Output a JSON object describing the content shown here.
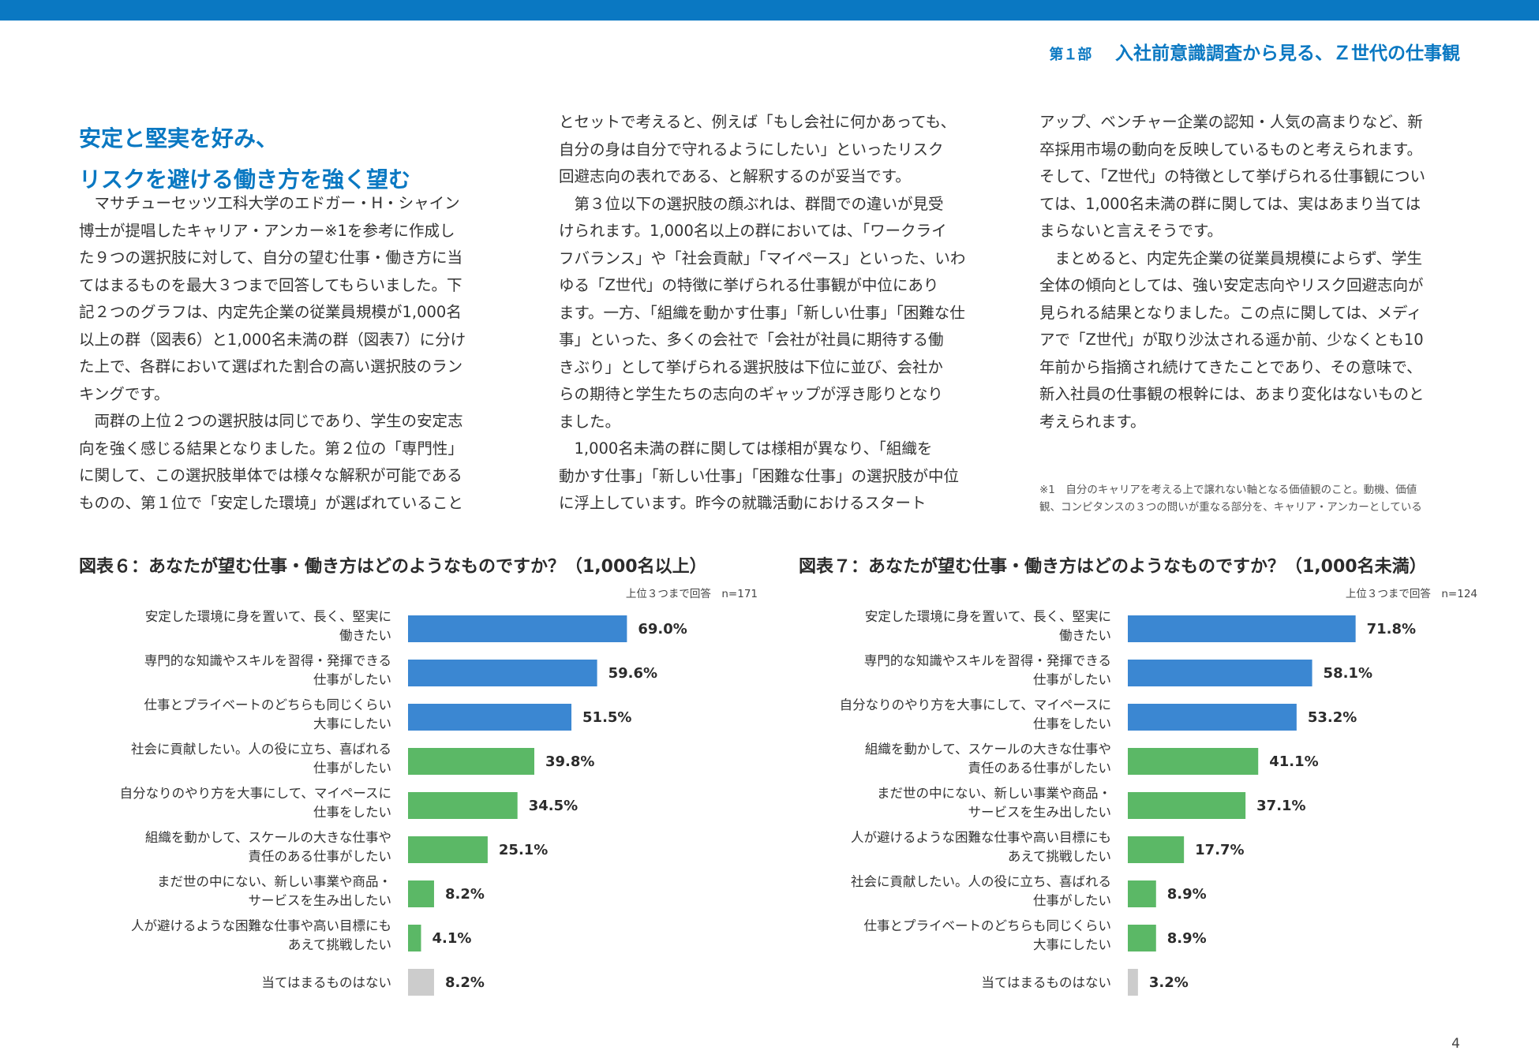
{
  "header": {
    "part": "第１部",
    "title": "入社前意識調査から見る、Ｚ世代の仕事観"
  },
  "heading": {
    "line1": "安定と堅実を好み、",
    "line2": "リスクを避ける働き方を強く望む"
  },
  "columns": {
    "col1": [
      "　マサチューセッツ工科大学のエドガー・H・シャイン",
      "博士が提唱したキャリア・アンカー※1を参考に作成し",
      "た９つの選択肢に対して、自分の望む仕事・働き方に当",
      "てはまるものを最大３つまで回答してもらいました。下",
      "記２つのグラフは、内定先企業の従業員規模が1,000名",
      "以上の群（図表6）と1,000名未満の群（図表7）に分け",
      "た上で、各群において選ばれた割合の高い選択肢のラン",
      "キングです。",
      "　両群の上位２つの選択肢は同じであり、学生の安定志",
      "向を強く感じる結果となりました。第２位の「専門性」",
      "に関して、この選択肢単体では様々な解釈が可能である",
      "ものの、第１位で「安定した環境」が選ばれていること"
    ],
    "col2": [
      "とセットで考えると、例えば「もし会社に何かあっても、",
      "自分の身は自分で守れるようにしたい」といったリスク",
      "回避志向の表れである、と解釈するのが妥当です。",
      "　第３位以下の選択肢の顔ぶれは、群間での違いが見受",
      "けられます。1,000名以上の群においては、「ワークライ",
      "フバランス」や「社会貢献」「マイペース」といった、いわ",
      "ゆる「Z世代」の特徴に挙げられる仕事観が中位にあり",
      "ます。一方、「組織を動かす仕事」「新しい仕事」「困難な仕",
      "事」といった、多くの会社で「会社が社員に期待する働",
      "きぶり」として挙げられる選択肢は下位に並び、会社か",
      "らの期待と学生たちの志向のギャップが浮き彫りとなり",
      "ました。",
      "　1,000名未満の群に関しては様相が異なり、「組織を",
      "動かす仕事」「新しい仕事」「困難な仕事」の選択肢が中位",
      "に浮上しています。昨今の就職活動におけるスタート"
    ],
    "col3": [
      "アップ、ベンチャー企業の認知・人気の高まりなど、新",
      "卒採用市場の動向を反映しているものと考えられます。",
      "そして、「Z世代」の特徴として挙げられる仕事観につい",
      "ては、1,000名未満の群に関しては、実はあまり当ては",
      "まらないと言えそうです。",
      "　まとめると、内定先企業の従業員規模によらず、学生",
      "全体の傾向としては、強い安定志向やリスク回避志向が",
      "見られる結果となりました。この点に関しては、メディ",
      "アで「Z世代」が取り沙汰される遥か前、少なくとも10",
      "年前から指摘され続けてきたことであり、その意味で、",
      "新入社員の仕事観の根幹には、あまり変化はないものと",
      "考えられます。"
    ]
  },
  "footnote": {
    "line1": "※1　自分のキャリアを考える上で譲れない軸となる価値観のこと。動機、価値",
    "line2": "観、コンピタンスの３つの問いが重なる部分を、キャリア・アンカーとしている"
  },
  "colors": {
    "accent": "#0a78c2",
    "bar_blue": "#3b87d2",
    "bar_green": "#5bb866",
    "bar_gray": "#cccccc"
  },
  "chart_data": [
    {
      "type": "bar",
      "orientation": "horizontal",
      "title": "図表６：あなたが望む仕事・働き方はどのようなものですか？（1,000名以上）",
      "note": "上位３つまで回答　n=171",
      "xlim": [
        0,
        100
      ],
      "categories": [
        [
          "安定した環境に身を置いて、長く、堅実に",
          "働きたい"
        ],
        [
          "専門的な知識やスキルを習得・発揮できる",
          "仕事がしたい"
        ],
        [
          "仕事とプライベートのどちらも同じくらい",
          "大事にしたい"
        ],
        [
          "社会に貢献したい。人の役に立ち、喜ばれる",
          "仕事がしたい"
        ],
        [
          "自分なりのやり方を大事にして、マイペースに",
          "仕事をしたい"
        ],
        [
          "組織を動かして、スケールの大きな仕事や",
          "責任のある仕事がしたい"
        ],
        [
          "まだ世の中にない、新しい事業や商品・",
          "サービスを生み出したい"
        ],
        [
          "人が避けるような困難な仕事や高い目標にも",
          "あえて挑戦したい"
        ],
        [
          "当てはまるものはない"
        ]
      ],
      "values": [
        69.0,
        59.6,
        51.5,
        39.8,
        34.5,
        25.1,
        8.2,
        4.1,
        8.2
      ],
      "labels": [
        "69.0%",
        "59.6%",
        "51.5%",
        "39.8%",
        "34.5%",
        "25.1%",
        "8.2%",
        "4.1%",
        "8.2%"
      ],
      "bar_colors": [
        "blue",
        "blue",
        "blue",
        "green",
        "green",
        "green",
        "green",
        "green",
        "gray"
      ]
    },
    {
      "type": "bar",
      "orientation": "horizontal",
      "title": "図表７：あなたが望む仕事・働き方はどのようなものですか？（1,000名未満）",
      "note": "上位３つまで回答　n=124",
      "xlim": [
        0,
        100
      ],
      "categories": [
        [
          "安定した環境に身を置いて、長く、堅実に",
          "働きたい"
        ],
        [
          "専門的な知識やスキルを習得・発揮できる",
          "仕事がしたい"
        ],
        [
          "自分なりのやり方を大事にして、マイペースに",
          "仕事をしたい"
        ],
        [
          "組織を動かして、スケールの大きな仕事や",
          "責任のある仕事がしたい"
        ],
        [
          "まだ世の中にない、新しい事業や商品・",
          "サービスを生み出したい"
        ],
        [
          "人が避けるような困難な仕事や高い目標にも",
          "あえて挑戦したい"
        ],
        [
          "社会に貢献したい。人の役に立ち、喜ばれる",
          "仕事がしたい"
        ],
        [
          "仕事とプライベートのどちらも同じくらい",
          "大事にしたい"
        ],
        [
          "当てはまるものはない"
        ]
      ],
      "values": [
        71.8,
        58.1,
        53.2,
        41.1,
        37.1,
        17.7,
        8.9,
        8.9,
        3.2
      ],
      "labels": [
        "71.8%",
        "58.1%",
        "53.2%",
        "41.1%",
        "37.1%",
        "17.7%",
        "8.9%",
        "8.9%",
        "3.2%"
      ],
      "bar_colors": [
        "blue",
        "blue",
        "blue",
        "green",
        "green",
        "green",
        "green",
        "green",
        "gray"
      ]
    }
  ],
  "page_number": "4"
}
